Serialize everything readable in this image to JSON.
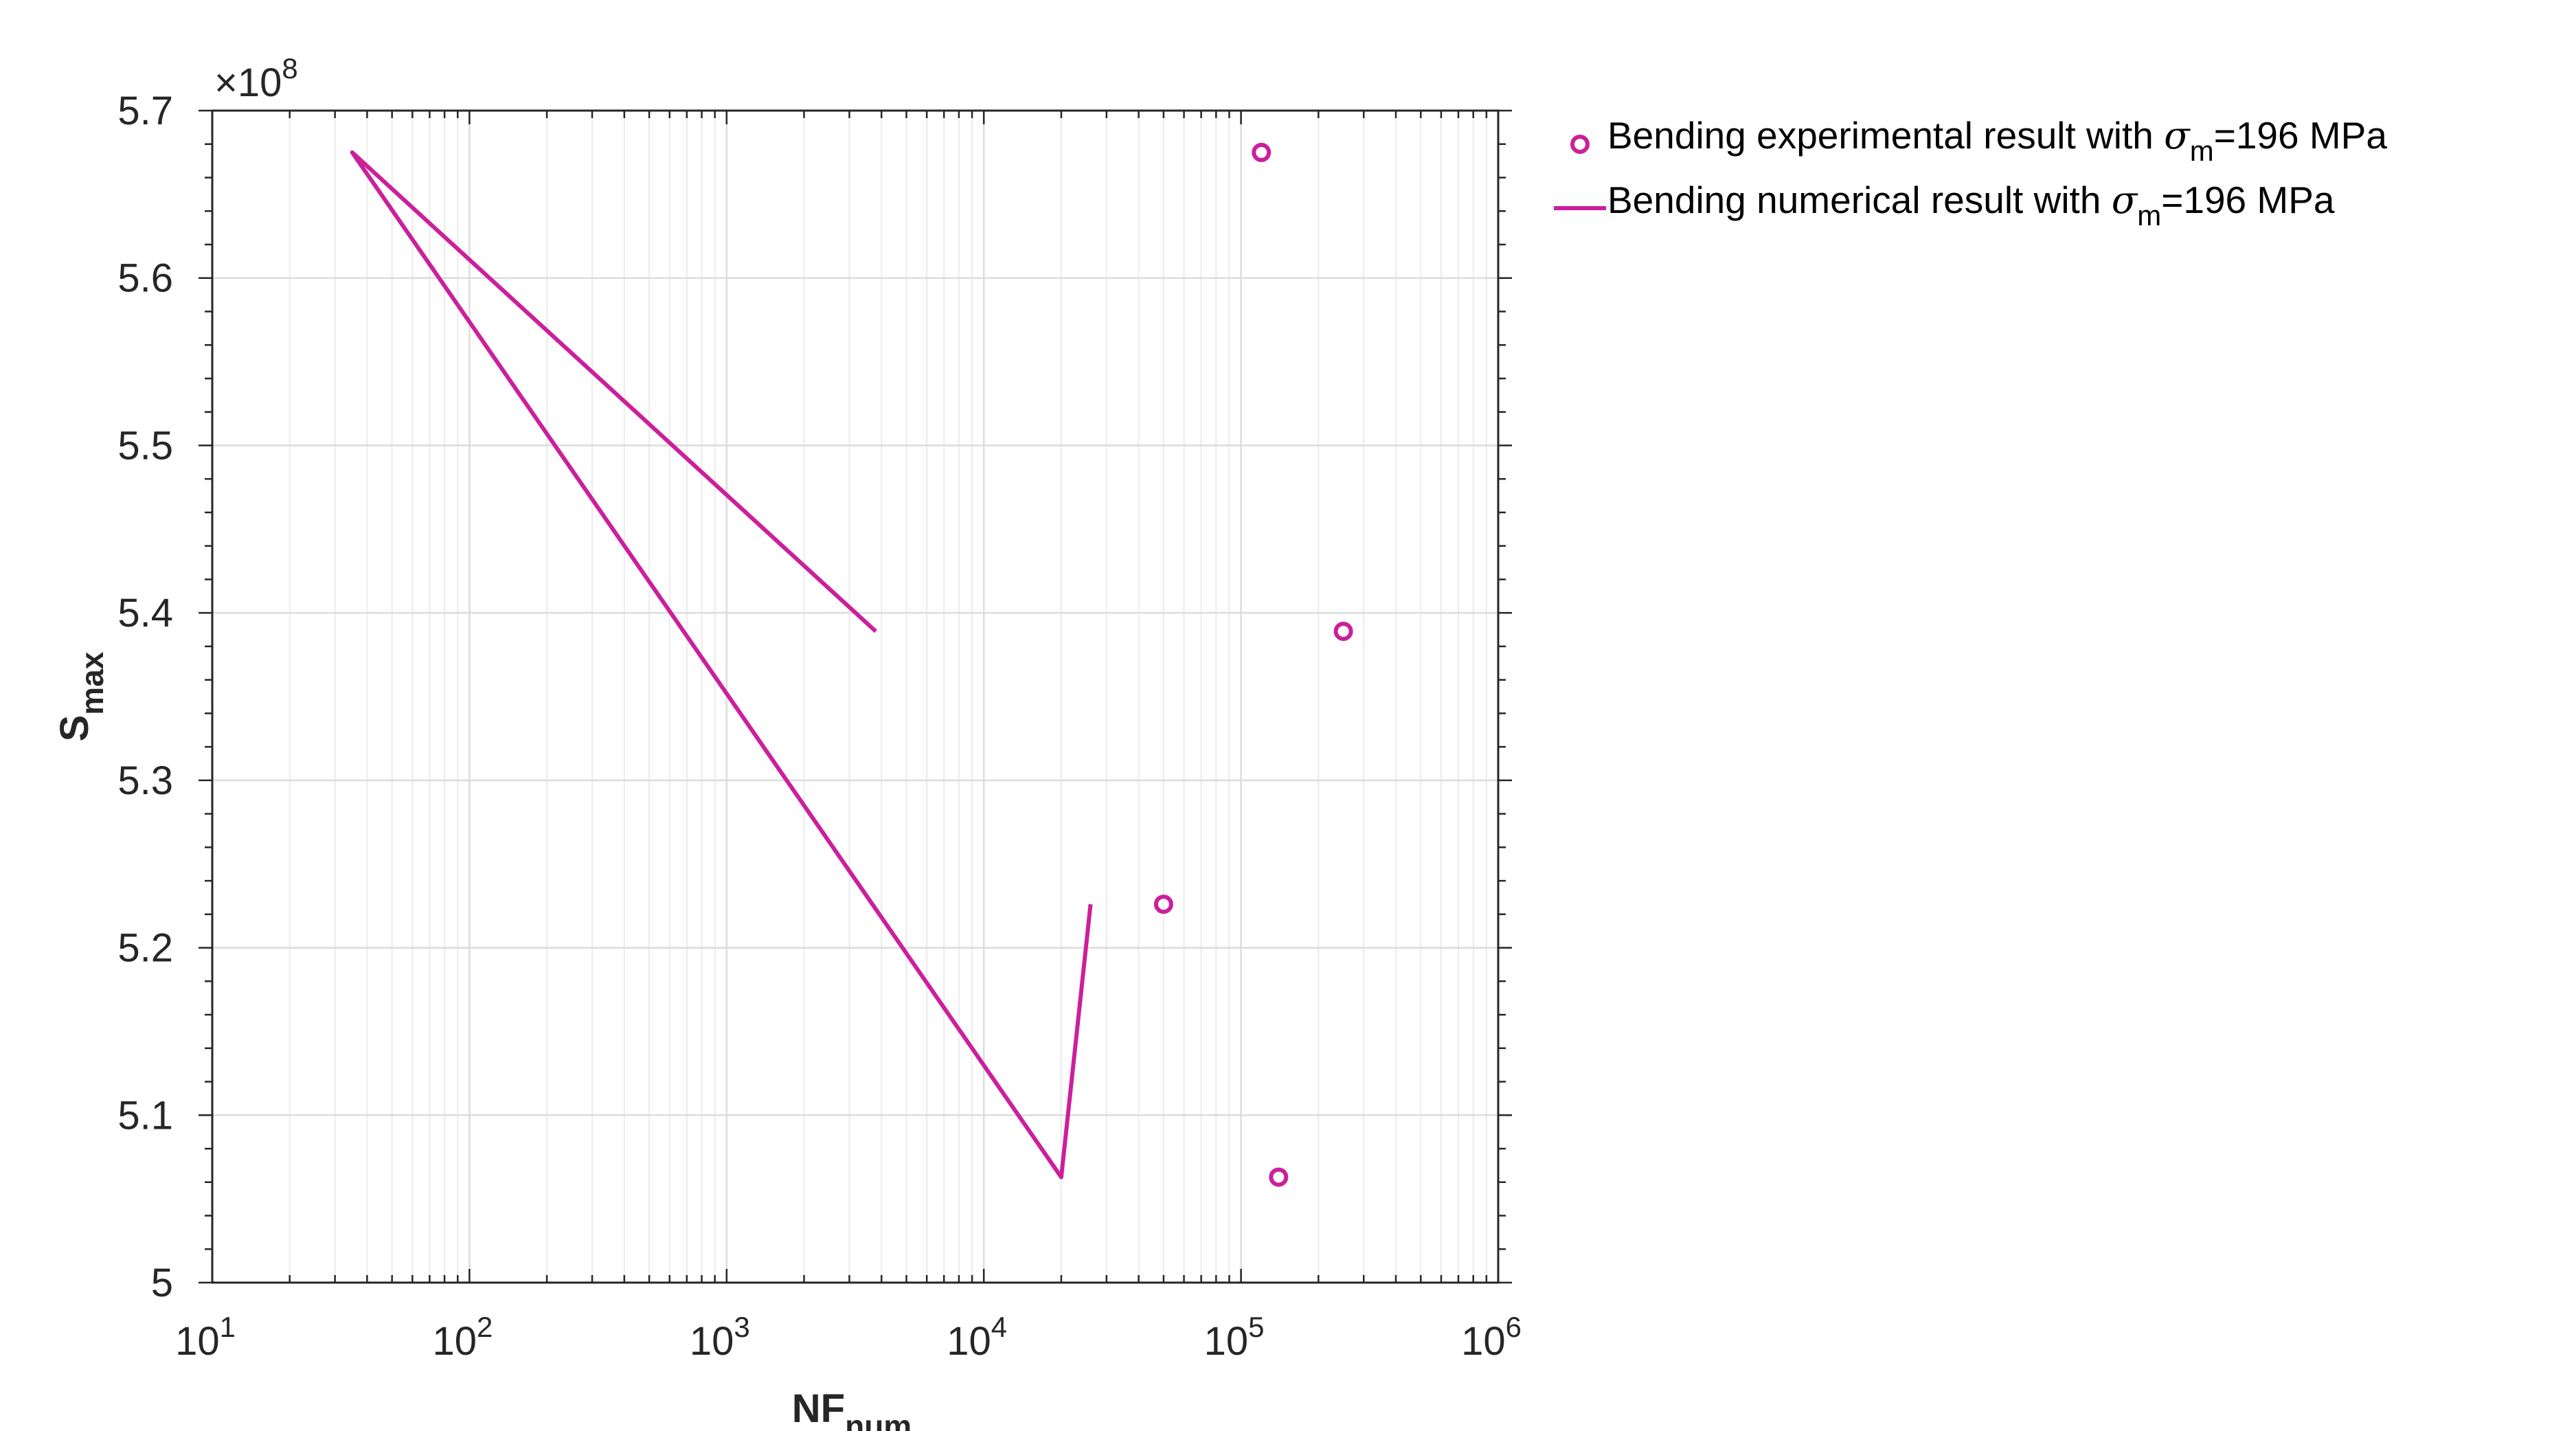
{
  "chart_data": {
    "type": "line",
    "title": "",
    "xlabel": {
      "main": "NF",
      "sub": "num"
    },
    "ylabel": {
      "main": "S",
      "sub": "max"
    },
    "x_scale": "log",
    "xlim": [
      10,
      1000000
    ],
    "ylim": [
      500000000,
      570000000
    ],
    "y_exponent_label": {
      "base": "×10",
      "exp": "8"
    },
    "x_ticks": [
      {
        "value": 10,
        "base": "10",
        "exp": "1"
      },
      {
        "value": 100,
        "base": "10",
        "exp": "2"
      },
      {
        "value": 1000,
        "base": "10",
        "exp": "3"
      },
      {
        "value": 10000,
        "base": "10",
        "exp": "4"
      },
      {
        "value": 100000,
        "base": "10",
        "exp": "5"
      },
      {
        "value": 1000000,
        "base": "10",
        "exp": "6"
      }
    ],
    "y_ticks": [
      {
        "value": 500000000,
        "label": "5"
      },
      {
        "value": 510000000,
        "label": "5.1"
      },
      {
        "value": 520000000,
        "label": "5.2"
      },
      {
        "value": 530000000,
        "label": "5.3"
      },
      {
        "value": 540000000,
        "label": "5.4"
      },
      {
        "value": 550000000,
        "label": "5.5"
      },
      {
        "value": 560000000,
        "label": "5.6"
      },
      {
        "value": 570000000,
        "label": "5.7"
      }
    ],
    "grid": true,
    "legend_position": "outside-top-right",
    "series": [
      {
        "name": "Bending experimental result with σm=196 MPa",
        "legend": {
          "pre": "Bending experimental result with ",
          "sym": "σ",
          "sub": "m",
          "post": "=196 MPa"
        },
        "style": "markers",
        "color": "#CC1F9B",
        "points": [
          {
            "x": 120000,
            "y": 567500000
          },
          {
            "x": 250000,
            "y": 538900000
          },
          {
            "x": 50000,
            "y": 522600000
          },
          {
            "x": 140000,
            "y": 506300000
          }
        ]
      },
      {
        "name": "Bending numerical result with σm=196 MPa",
        "legend": {
          "pre": "Bending numerical result with ",
          "sym": "σ",
          "sub": "m",
          "post": "=196 MPa"
        },
        "style": "line",
        "color": "#CC1F9B",
        "points": [
          {
            "x": 3800,
            "y": 538900000
          },
          {
            "x": 35,
            "y": 567500000
          },
          {
            "x": 20000,
            "y": 506300000
          },
          {
            "x": 26000,
            "y": 522600000
          }
        ]
      }
    ]
  }
}
